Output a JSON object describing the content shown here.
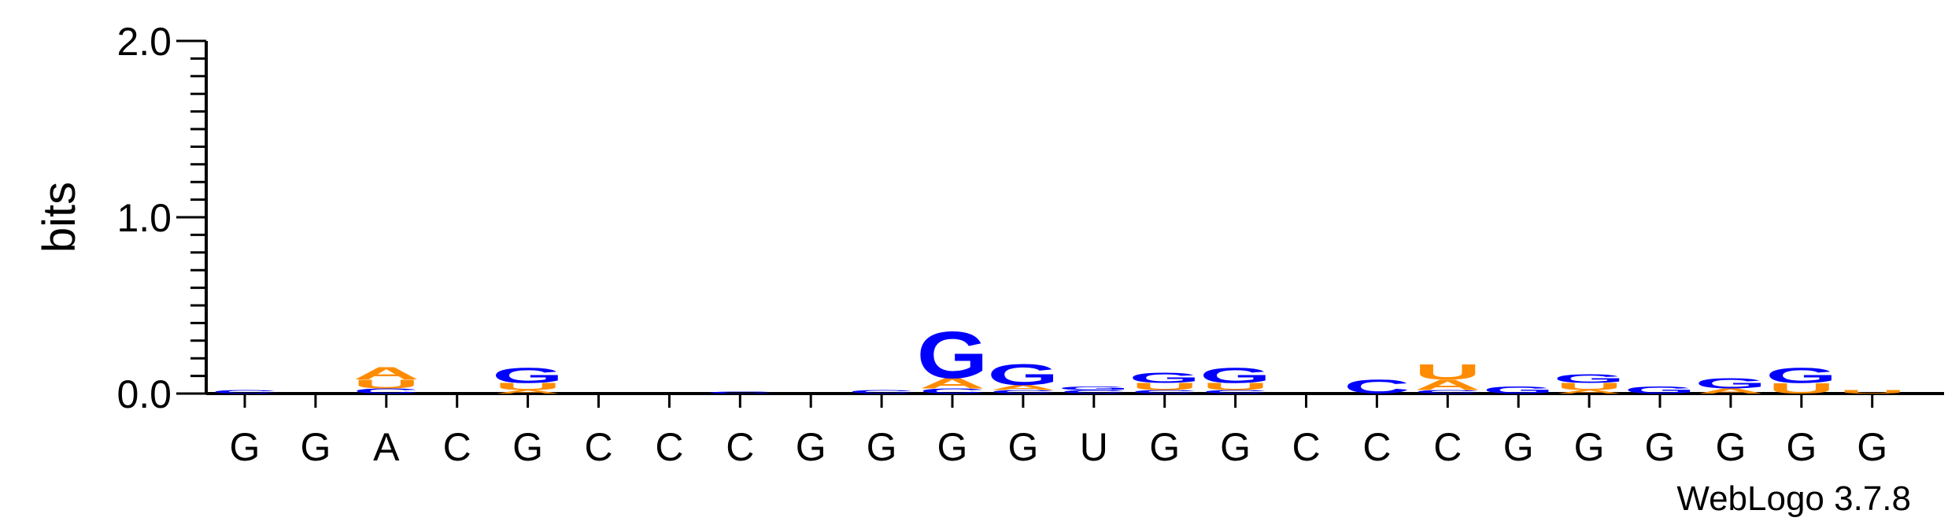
{
  "chart_data": {
    "type": "sequence_logo",
    "ylabel": "bits",
    "ylim": [
      0,
      2.0
    ],
    "yticks": [
      "0.0",
      "1.0",
      "2.0"
    ],
    "consensus": [
      "G",
      "G",
      "A",
      "C",
      "G",
      "C",
      "C",
      "C",
      "G",
      "G",
      "G",
      "G",
      "U",
      "G",
      "G",
      "C",
      "C",
      "C",
      "G",
      "G",
      "G",
      "G",
      "G",
      "G"
    ],
    "colors": {
      "G": "#0000ff",
      "C": "#0000ff",
      "A": "#ff8c00",
      "U": "#ff8c00"
    },
    "positions": [
      [
        {
          "letter": "C",
          "bits": 0.02
        }
      ],
      [],
      [
        {
          "letter": "C",
          "bits": 0.03
        },
        {
          "letter": "U",
          "bits": 0.05
        },
        {
          "letter": "A",
          "bits": 0.07
        }
      ],
      [],
      [
        {
          "letter": "A",
          "bits": 0.02
        },
        {
          "letter": "U",
          "bits": 0.04
        },
        {
          "letter": "G",
          "bits": 0.09
        }
      ],
      [],
      [],
      [
        {
          "letter": "C",
          "bits": 0.01
        }
      ],
      [],
      [
        {
          "letter": "C",
          "bits": 0.02
        }
      ],
      [
        {
          "letter": "C",
          "bits": 0.03
        },
        {
          "letter": "A",
          "bits": 0.06
        },
        {
          "letter": "G",
          "bits": 0.27
        }
      ],
      [
        {
          "letter": "C",
          "bits": 0.02
        },
        {
          "letter": "A",
          "bits": 0.03
        },
        {
          "letter": "G",
          "bits": 0.12
        }
      ],
      [
        {
          "letter": "C",
          "bits": 0.02
        },
        {
          "letter": "G",
          "bits": 0.02
        }
      ],
      [
        {
          "letter": "C",
          "bits": 0.02
        },
        {
          "letter": "U",
          "bits": 0.04
        },
        {
          "letter": "G",
          "bits": 0.06
        }
      ],
      [
        {
          "letter": "C",
          "bits": 0.02
        },
        {
          "letter": "U",
          "bits": 0.04
        },
        {
          "letter": "G",
          "bits": 0.09
        }
      ],
      [],
      [
        {
          "letter": "C",
          "bits": 0.08
        }
      ],
      [
        {
          "letter": "C",
          "bits": 0.02
        },
        {
          "letter": "A",
          "bits": 0.06
        },
        {
          "letter": "U",
          "bits": 0.09
        }
      ],
      [
        {
          "letter": "G",
          "bits": 0.04
        }
      ],
      [
        {
          "letter": "A",
          "bits": 0.02
        },
        {
          "letter": "U",
          "bits": 0.04
        },
        {
          "letter": "G",
          "bits": 0.05
        }
      ],
      [
        {
          "letter": "G",
          "bits": 0.04
        }
      ],
      [
        {
          "letter": "A",
          "bits": 0.03
        },
        {
          "letter": "G",
          "bits": 0.06
        }
      ],
      [
        {
          "letter": "U",
          "bits": 0.06
        },
        {
          "letter": "G",
          "bits": 0.09
        }
      ],
      [
        {
          "letter": "U",
          "bits": 0.02
        }
      ]
    ]
  },
  "credit": "WebLogo 3.7.8"
}
